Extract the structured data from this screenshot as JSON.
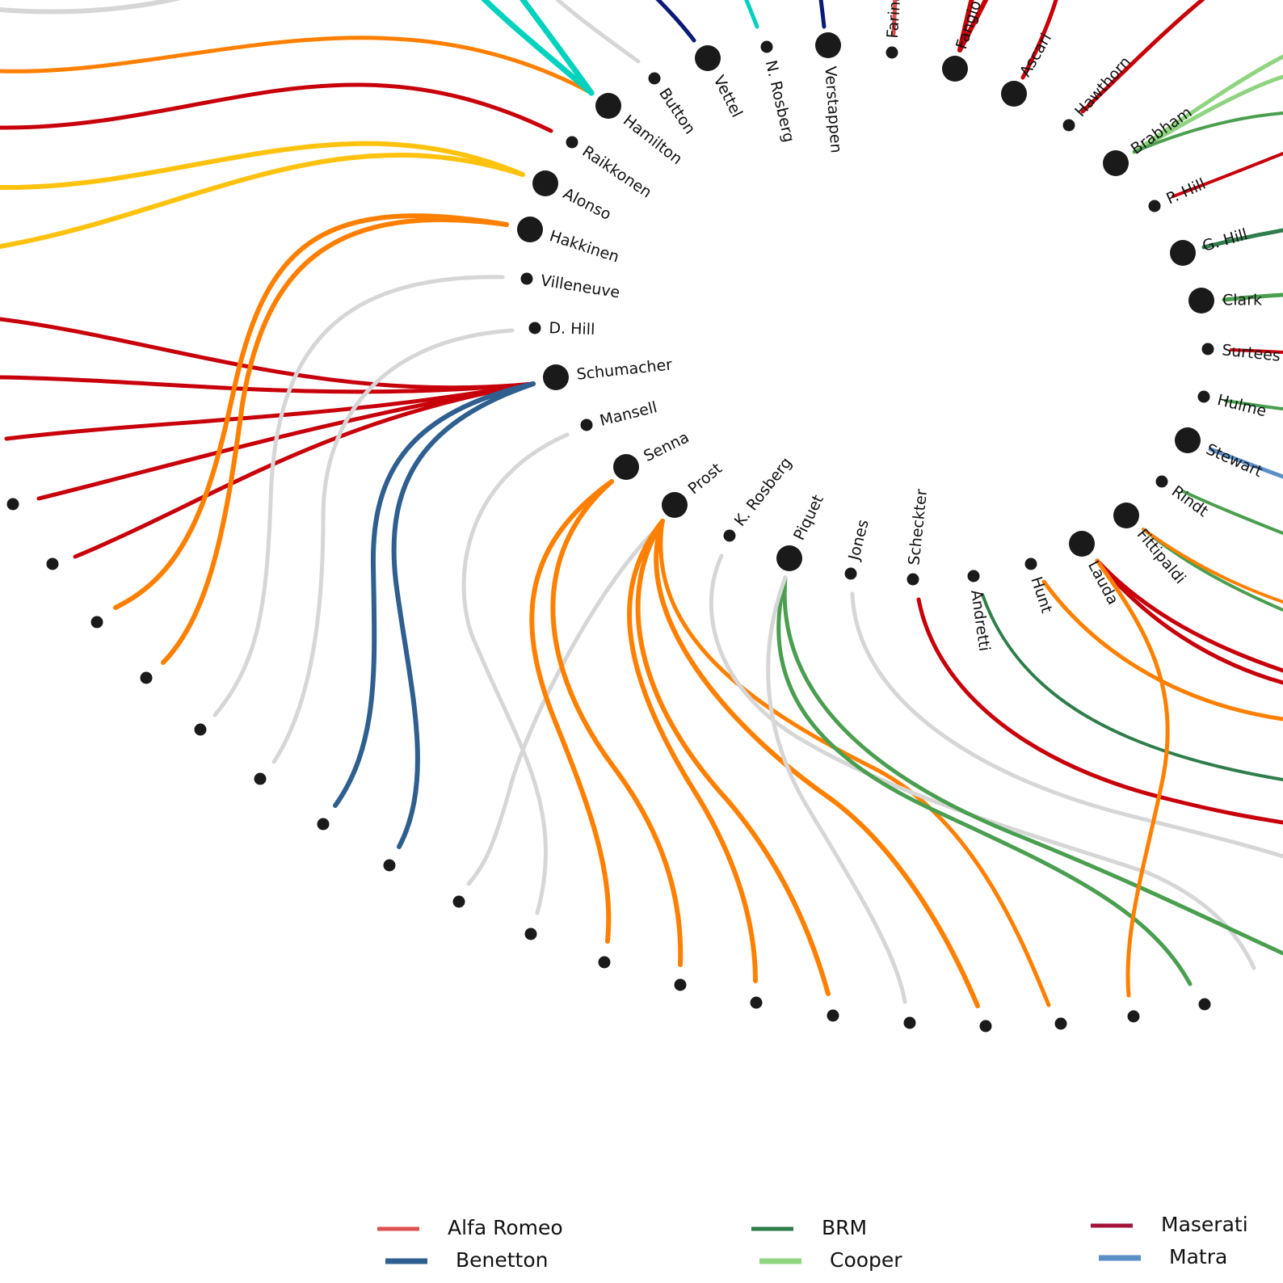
{
  "drivers": [
    {
      "name": "Hamilton",
      "large": true
    },
    {
      "name": "Button",
      "large": false
    },
    {
      "name": "Vettel",
      "large": true
    },
    {
      "name": "N. Rosberg",
      "large": false
    },
    {
      "name": "Verstappen",
      "large": true
    },
    {
      "name": "Farina",
      "large": false
    },
    {
      "name": "Fangio",
      "large": true
    },
    {
      "name": "Ascari",
      "large": true
    },
    {
      "name": "Hawthorn",
      "large": false
    },
    {
      "name": "Brabham",
      "large": true
    },
    {
      "name": "P. Hill",
      "large": false
    },
    {
      "name": "G. Hill",
      "large": true
    },
    {
      "name": "Clark",
      "large": true
    },
    {
      "name": "Surtees",
      "large": false
    },
    {
      "name": "Hulme",
      "large": false
    },
    {
      "name": "Stewart",
      "large": true
    },
    {
      "name": "Rindt",
      "large": false
    },
    {
      "name": "Fittipaldi",
      "large": true
    },
    {
      "name": "Lauda",
      "large": true
    },
    {
      "name": "Hunt",
      "large": false
    },
    {
      "name": "Andretti",
      "large": false
    },
    {
      "name": "Scheckter",
      "large": false
    },
    {
      "name": "Jones",
      "large": false
    },
    {
      "name": "Piquet",
      "large": true
    },
    {
      "name": "K. Rosberg",
      "large": false
    },
    {
      "name": "Prost",
      "large": true
    },
    {
      "name": "Senna",
      "large": true
    },
    {
      "name": "Mansell",
      "large": false
    },
    {
      "name": "Schumacher",
      "large": true
    },
    {
      "name": "D. Hill",
      "large": false
    },
    {
      "name": "Villeneuve",
      "large": false
    },
    {
      "name": "Hakkinen",
      "large": true
    },
    {
      "name": "Alonso",
      "large": true
    },
    {
      "name": "Raikkonen",
      "large": false
    }
  ],
  "teams": {
    "alfa": {
      "name": "Alfa Romeo",
      "color": "#e05050"
    },
    "benetton": {
      "name": "Benetton",
      "color": "#2f5f8f"
    },
    "brm": {
      "name": "BRM",
      "color": "#2e7d4a"
    },
    "cooper": {
      "name": "Cooper",
      "color": "#8fd47f"
    },
    "maserati": {
      "name": "Maserati",
      "color": "#a3123a"
    },
    "matra": {
      "name": "Matra",
      "color": "#5b8fc7"
    },
    "ferrari": {
      "name": "",
      "color": "#c8000a"
    },
    "mclaren": {
      "name": "",
      "color": "#ff8000"
    },
    "williams": {
      "name": "",
      "color": "#d6d6d6"
    },
    "lotus": {
      "name": "",
      "color": "#4a9e4f"
    },
    "mercedes": {
      "name": "",
      "color": "#00d2be"
    },
    "redbull": {
      "name": "",
      "color": "#0a1a7a"
    },
    "renault": {
      "name": "",
      "color": "#ffc20e"
    }
  },
  "legend": [
    {
      "team": "Alfa Romeo",
      "color": "#e05050"
    },
    {
      "team": "Benetton",
      "color": "#2f5f8f"
    },
    {
      "team": "BRM",
      "color": "#2e7d4a"
    },
    {
      "team": "Cooper",
      "color": "#8fd47f"
    },
    {
      "team": "Maserati",
      "color": "#a3123a"
    },
    {
      "team": "Matra",
      "color": "#5b8fc7"
    }
  ]
}
